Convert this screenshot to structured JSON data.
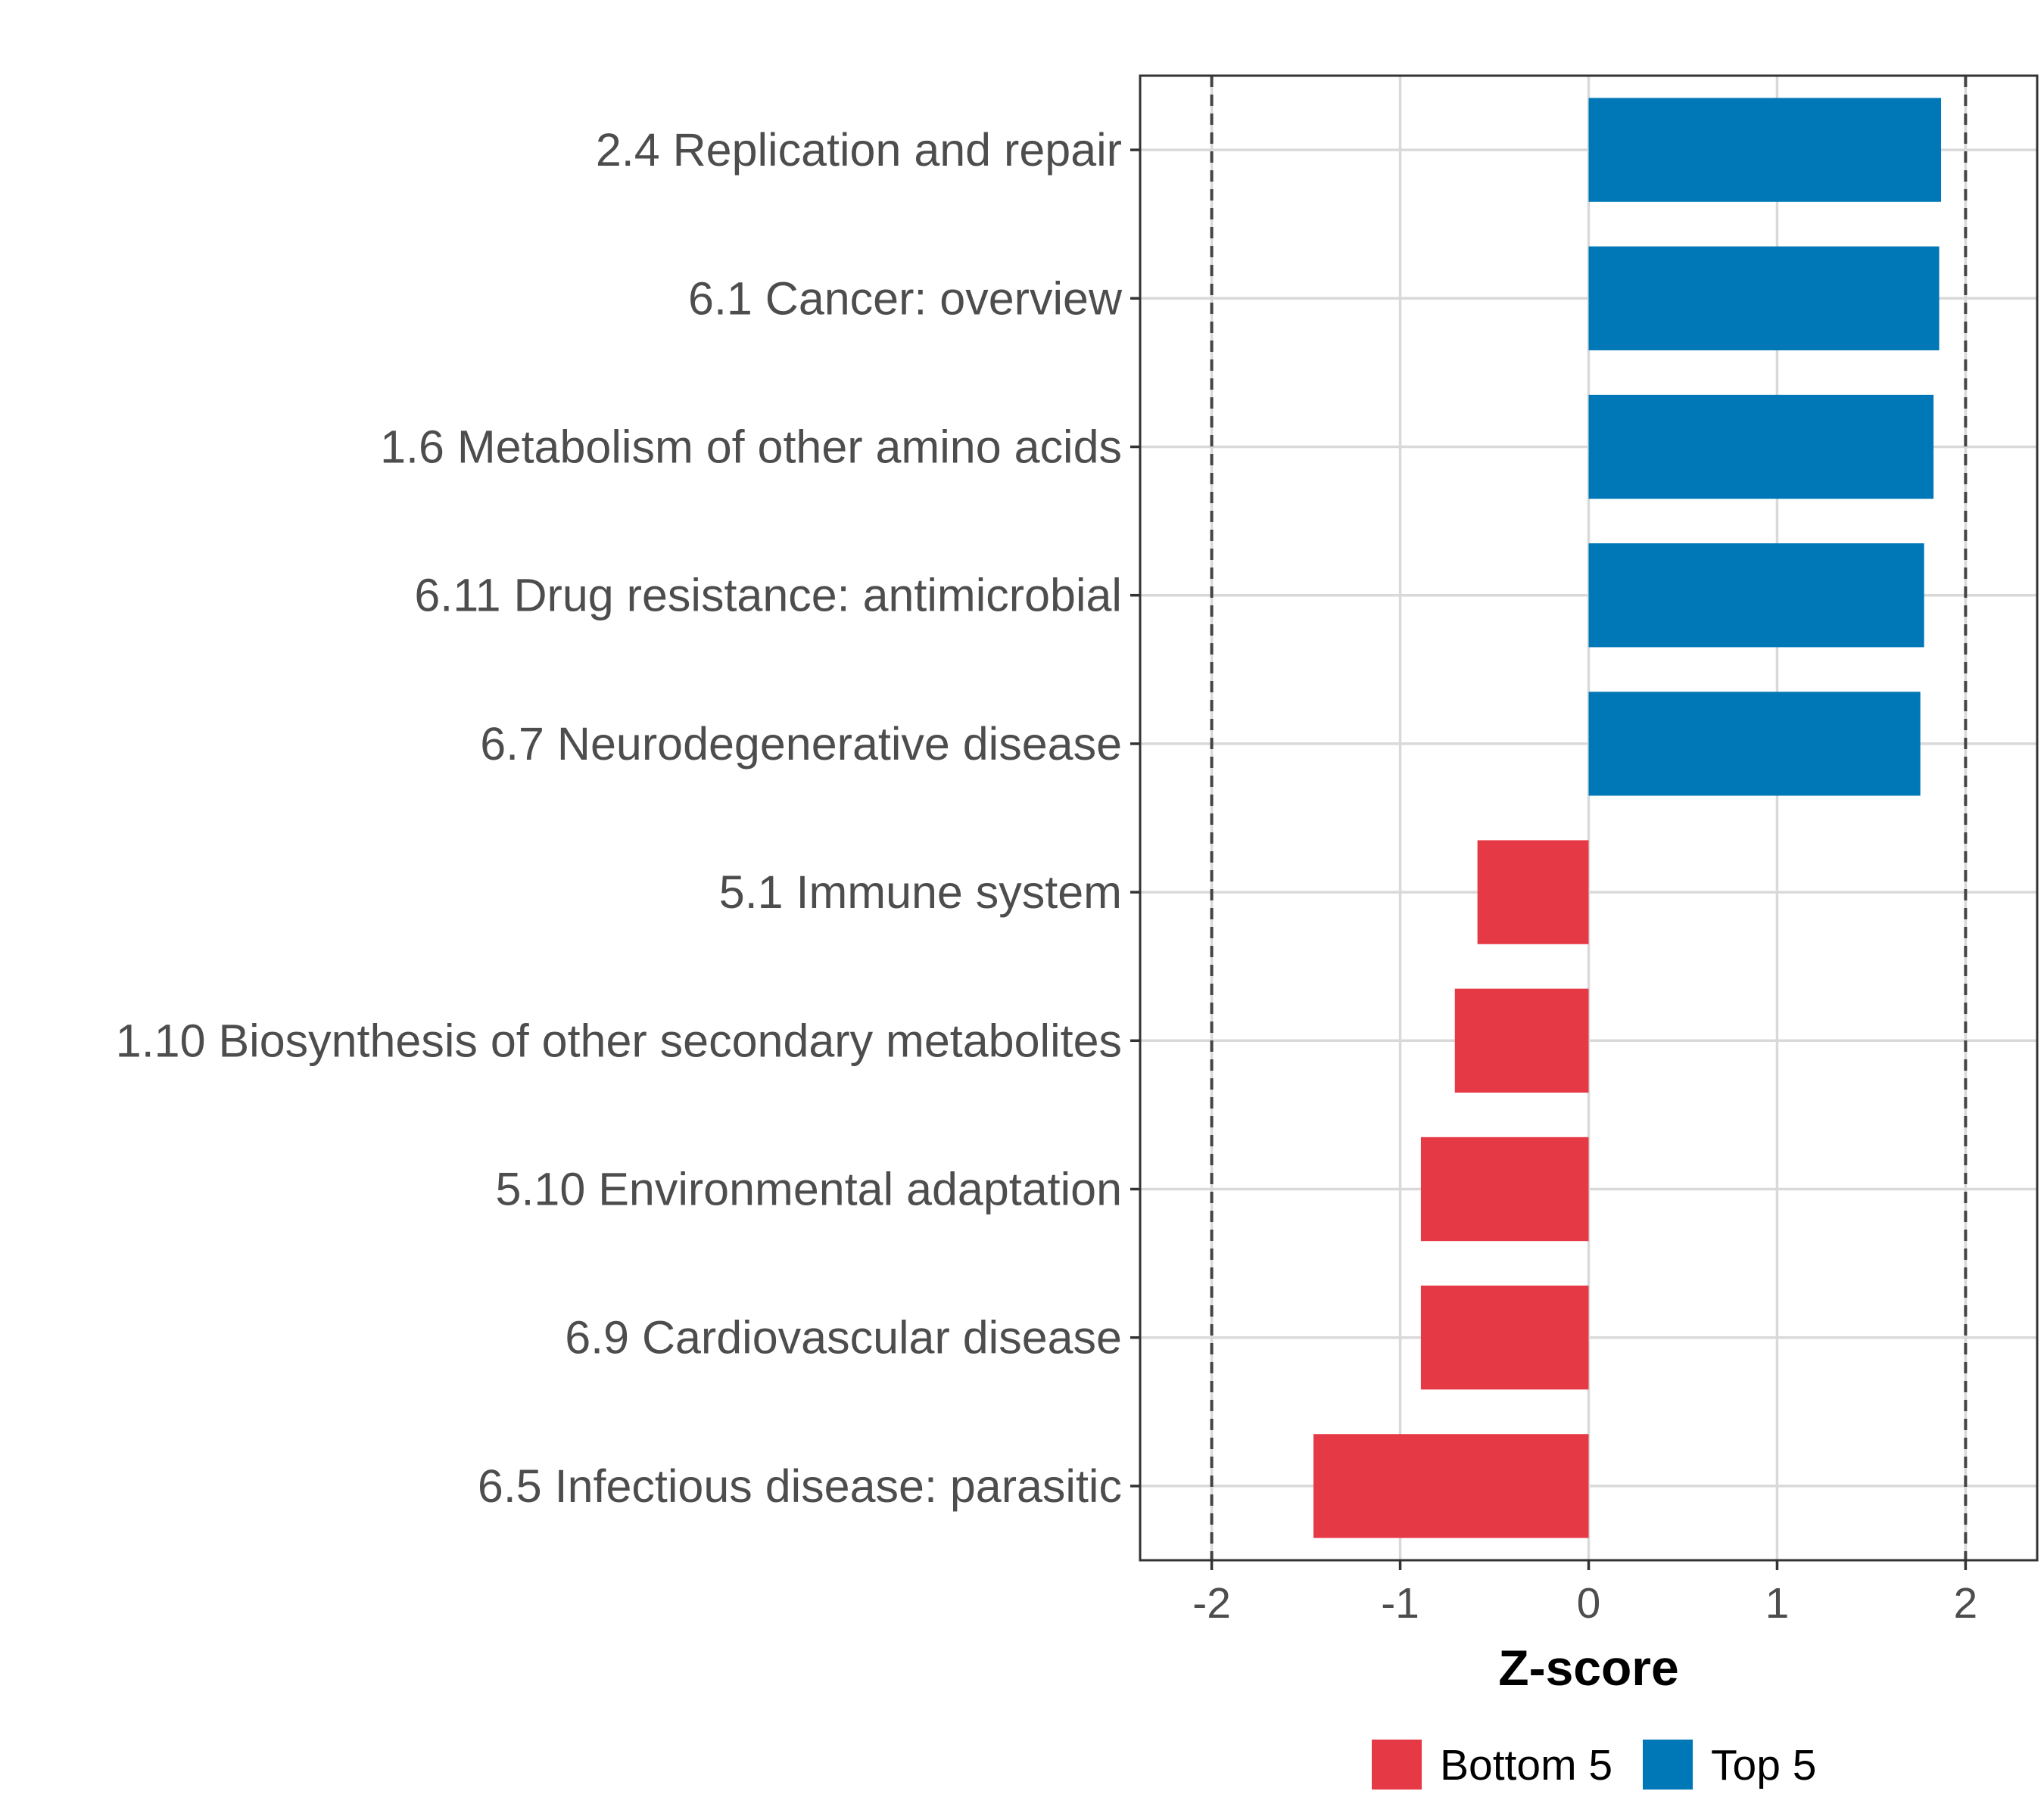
{
  "chart_data": {
    "type": "bar",
    "orientation": "horizontal",
    "categories": [
      "2.4 Replication and repair",
      "6.1 Cancer: overview",
      "1.6 Metabolism of other amino acids",
      "6.11 Drug resistance: antimicrobial",
      "6.7 Neurodegenerative disease",
      "5.1 Immune system",
      "1.10 Biosynthesis of other secondary metabolites",
      "5.10 Environmental adaptation",
      "6.9 Cardiovascular disease",
      "6.5 Infectious disease: parasitic"
    ],
    "values": [
      1.87,
      1.86,
      1.83,
      1.78,
      1.76,
      -0.59,
      -0.71,
      -0.89,
      -0.89,
      -1.46
    ],
    "groups": [
      "Top 5",
      "Top 5",
      "Top 5",
      "Top 5",
      "Top 5",
      "Bottom 5",
      "Bottom 5",
      "Bottom 5",
      "Bottom 5",
      "Bottom 5"
    ],
    "xlabel": "Z-score",
    "ylabel": "",
    "xlim": [
      -2.38,
      2.38
    ],
    "x_ticks": [
      -2,
      -1,
      0,
      1,
      2
    ],
    "x_tick_labels": [
      "-2",
      "-1",
      "0",
      "1",
      "2"
    ],
    "reference_lines": [
      -2,
      2
    ],
    "grid": true,
    "legend": {
      "position": "bottom",
      "entries": [
        {
          "label": "Bottom 5",
          "color": "#e63946"
        },
        {
          "label": "Top 5",
          "color": "#0077b6"
        }
      ]
    }
  }
}
